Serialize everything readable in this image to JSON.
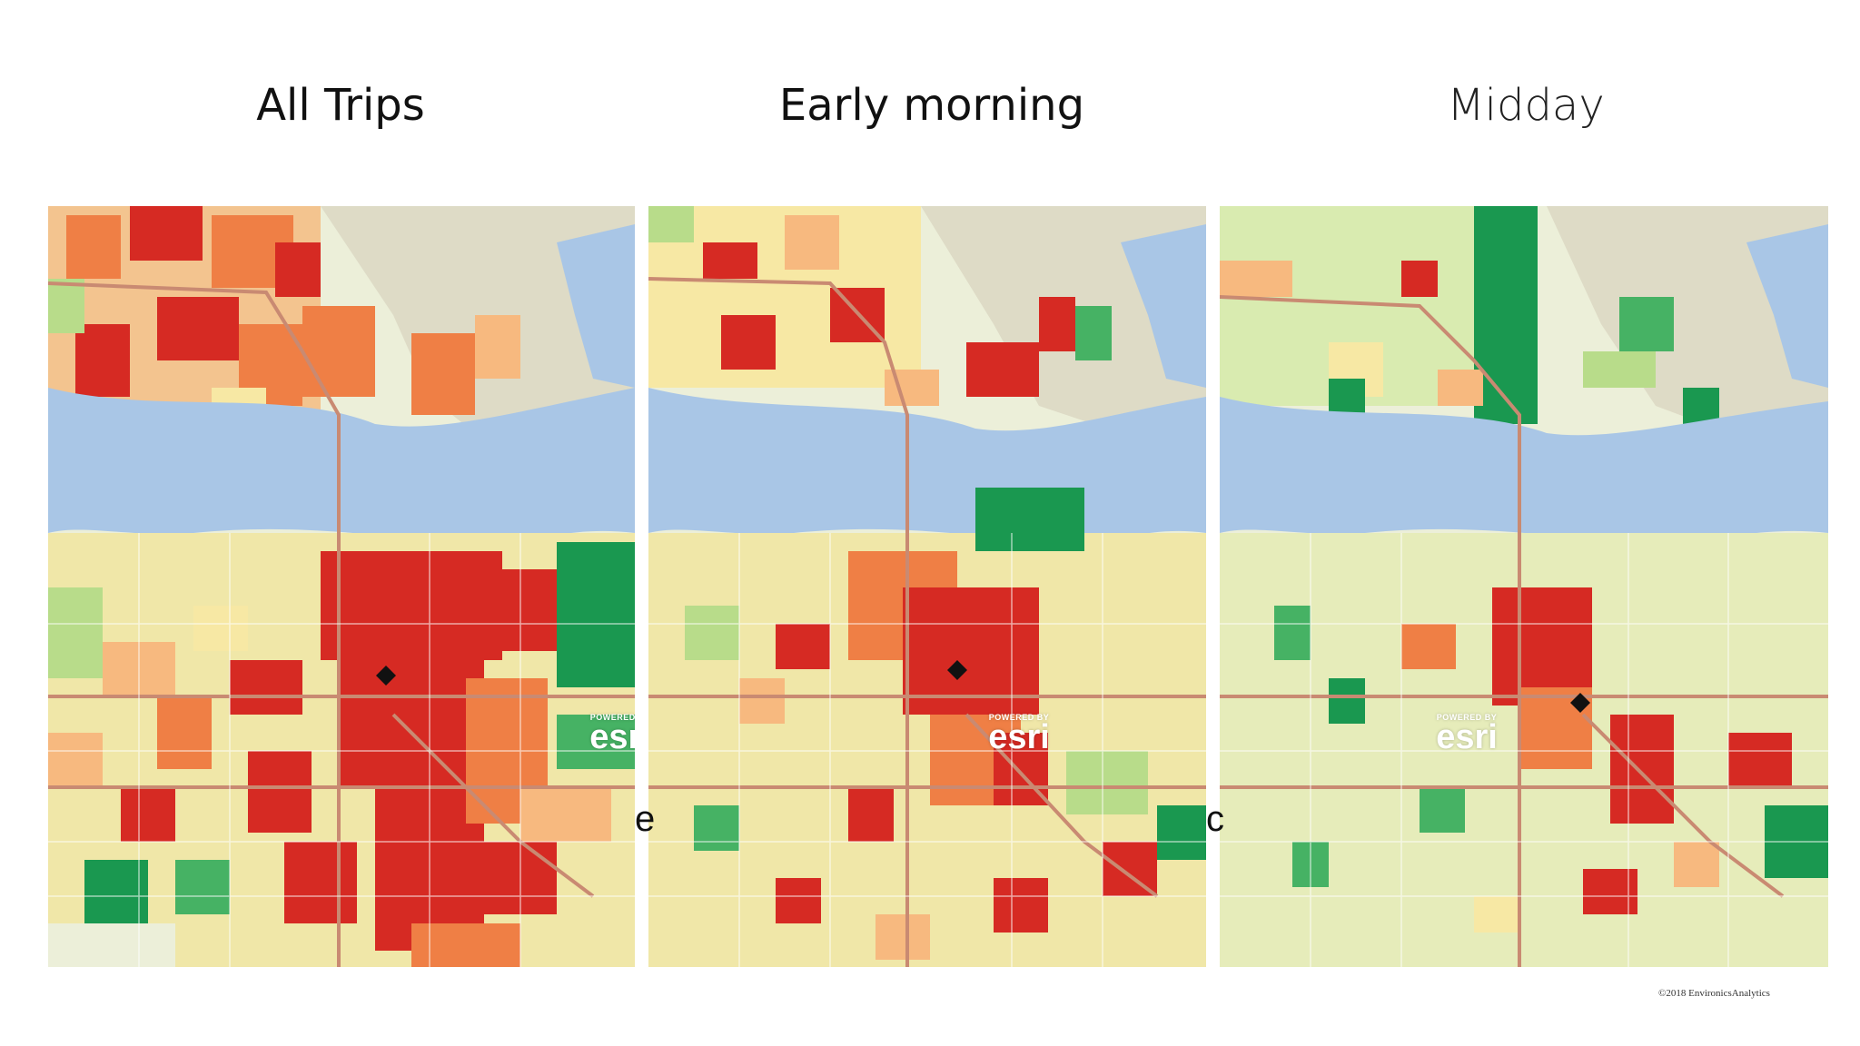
{
  "panels": [
    {
      "title": "All Trips"
    },
    {
      "title": "Early morning"
    },
    {
      "title": "Midday"
    }
  ],
  "watermark": {
    "powered_by": "POWERED BY",
    "brand": "esri"
  },
  "copyright": "©2018 EnvironicsAnalytics",
  "stray_glyphs": [
    "e",
    "c"
  ],
  "colors": {
    "water": "#a9c6e6",
    "land": "#ecefd9",
    "red": "#d62a23",
    "orange": "#ef7f45",
    "light_orange": "#f7b97f",
    "yellow": "#f7e8a4",
    "light_green": "#b8dc8a",
    "green": "#46b264",
    "dark_green": "#1a9850",
    "mountain": "#d9d6c2",
    "road": "#c98a72"
  }
}
